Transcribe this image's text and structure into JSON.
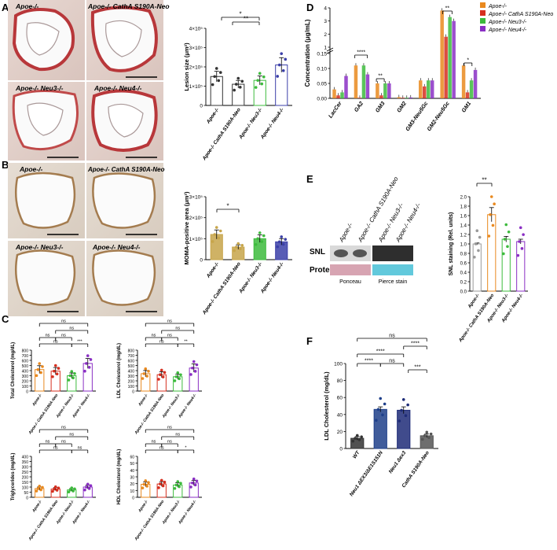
{
  "panels": {
    "A": {
      "letter": "A",
      "micro_labels": [
        "Apoe-/-",
        "Apoe-/- CathA S190A-Neo",
        "Apoe-/- Neu3-/-",
        "Apoe-/- Neu4-/-"
      ],
      "ylabel": "Lesion size (μm²)",
      "yticks": [
        "0",
        "1×10⁵",
        "2×10⁵",
        "3×10⁵",
        "4×10⁵"
      ],
      "categories": [
        "Apoe-/-",
        "Apoe-/- CathA S190A-Neo",
        "Apoe-/- Neu3-/-",
        "Apoe-/- Neu4-/-"
      ],
      "sig": [
        "*",
        "**"
      ]
    },
    "B": {
      "letter": "B",
      "micro_labels": [
        "Apoe-/-",
        "Apoe-/- CathA S190A-Neo",
        "Apoe-/- Neu3-/-",
        "Apoe-/- Neu4-/-"
      ],
      "ylabel": "MOMA-positive area (μm²)",
      "yticks": [
        "0",
        "1×10⁵",
        "2×10⁵",
        "3×10⁵"
      ],
      "categories": [
        "Apoe-/-",
        "Apoe-/- CathA S190A-Neo",
        "Apoe-/- Neu3-/-",
        "Apoe-/- Neu4-/-"
      ],
      "sig": [
        "*"
      ]
    },
    "C": {
      "letter": "C",
      "plots": [
        {
          "ylabel": "Total Cholesterol (mg/dL)",
          "yticks": [
            "0",
            "100",
            "200",
            "300",
            "400",
            "500",
            "600",
            "700",
            "800"
          ],
          "sig": [
            "ns",
            "ns",
            "ns",
            "ns",
            "ns",
            "***"
          ]
        },
        {
          "ylabel": "LDL Cholesterol (mg/dL)",
          "yticks": [
            "0",
            "100",
            "200",
            "300",
            "400",
            "500",
            "600",
            "700",
            "800"
          ],
          "sig": [
            "ns",
            "ns",
            "ns",
            "ns",
            "ns",
            "**"
          ]
        },
        {
          "ylabel": "Triglycerides (mg/dL)",
          "yticks": [
            "0",
            "50",
            "100",
            "150",
            "200",
            "250",
            "300",
            "350",
            "400"
          ],
          "sig": [
            "ns",
            "ns",
            "ns",
            "ns",
            "ns",
            "ns"
          ]
        },
        {
          "ylabel": "HDL Cholesterol (mg/dL)",
          "yticks": [
            "0",
            "10",
            "20",
            "30",
            "40",
            "50",
            "60"
          ],
          "sig": [
            "ns",
            "ns",
            "ns",
            "ns",
            "ns",
            "*"
          ]
        }
      ],
      "categories": [
        "Apoe-/-",
        "Apoe-/- CathA S190A-Neo",
        "Apoe-/- Neu3-/-",
        "Apoe-/- Neu4-/-"
      ]
    },
    "D": {
      "letter": "D",
      "ylabel": "Concentration (μg/mL)",
      "yticks": [
        "0.00",
        "0.05",
        "0.10",
        "0.15",
        "1",
        "2",
        "3",
        "4"
      ],
      "categories": [
        "LacCer",
        "GA2",
        "GM3",
        "GM2",
        "GM3-Neu5Gc",
        "GM2-Neu5Gc",
        "GM1"
      ],
      "sig": [
        "****",
        "**",
        "**",
        "*"
      ]
    },
    "E": {
      "letter": "E",
      "blot_labels": [
        "Apoe-/-",
        "Apoe-/- CathA S190A-Neo",
        "Apoe-/- Neu3-/-",
        "Apoe-/- Neu4-/-"
      ],
      "row_labels": [
        "SNL",
        "Protein"
      ],
      "stain_labels": [
        "Ponceau",
        "Pierce stain"
      ],
      "ylabel": "SNL staining (Rel. units)",
      "yticks": [
        "0.0",
        "0.2",
        "0.4",
        "0.6",
        "0.8",
        "1.0",
        "1.2",
        "1.4",
        "1.6",
        "1.8",
        "2.0"
      ],
      "categories": [
        "Apoe-/-",
        "Apoe-/- CathA S190A-Neo",
        "Apoe-/- Neu3-/-",
        "Apoe-/- Neu4-/-"
      ],
      "sig": [
        "**"
      ]
    },
    "F": {
      "letter": "F",
      "ylabel": "LDL Cholesterol (mg/dL)",
      "yticks": [
        "0",
        "20",
        "40",
        "60",
        "80",
        "100"
      ],
      "categories": [
        "WT",
        "Neu1 ΔEX3/ΔE1S151N",
        "Neu1 Δex3",
        "CathA S190A-Neo"
      ],
      "sig": [
        "ns",
        "****",
        "****",
        "****",
        "ns",
        "***"
      ]
    }
  },
  "legend": [
    "Apoe-/-",
    "Apoe-/- CathA S190A-Neo",
    "Apoe-/- Neu3-/-",
    "Apoe-/- Neu4-/-"
  ],
  "colors": {
    "c1": "#e9891f",
    "c2": "#d62f1f",
    "c3": "#3dbb3d",
    "c4": "#8a2fc4"
  },
  "chart_data": [
    {
      "type": "bar",
      "title": "A",
      "ylabel": "Lesion size (μm²)",
      "ylim": [
        0,
        400000
      ],
      "categories": [
        "Apoe-/-",
        "Apoe-/- CathA S190A-Neo",
        "Apoe-/- Neu3-/-",
        "Apoe-/- Neu4-/-"
      ],
      "values": [
        150000,
        110000,
        130000,
        210000
      ]
    },
    {
      "type": "bar",
      "title": "B",
      "ylabel": "MOMA-positive area (μm²)",
      "ylim": [
        0,
        300000
      ],
      "categories": [
        "Apoe-/-",
        "Apoe-/- CathA S190A-Neo",
        "Apoe-/- Neu3-/-",
        "Apoe-/- Neu4-/-"
      ],
      "values": [
        120000,
        60000,
        100000,
        85000
      ]
    },
    {
      "type": "bar",
      "title": "C Total",
      "ylabel": "Total Cholesterol (mg/dL)",
      "ylim": [
        0,
        800
      ],
      "categories": [
        "Apoe-/-",
        "Apoe-/- CathA S190A-Neo",
        "Apoe-/- Neu3-/-",
        "Apoe-/- Neu4-/-"
      ],
      "values": [
        420,
        390,
        300,
        540
      ]
    },
    {
      "type": "bar",
      "title": "C LDL",
      "ylabel": "LDL Cholesterol (mg/dL)",
      "ylim": [
        0,
        800
      ],
      "categories": [
        "Apoe-/-",
        "Apoe-/- CathA S190A-Neo",
        "Apoe-/- Neu3-/-",
        "Apoe-/- Neu4-/-"
      ],
      "values": [
        340,
        320,
        280,
        450
      ]
    },
    {
      "type": "bar",
      "title": "C TG",
      "ylabel": "Triglycerides (mg/dL)",
      "ylim": [
        0,
        400
      ],
      "categories": [
        "Apoe-/-",
        "Apoe-/- CathA S190A-Neo",
        "Apoe-/- Neu3-/-",
        "Apoe-/- Neu4-/-"
      ],
      "values": [
        85,
        80,
        72,
        100
      ]
    },
    {
      "type": "bar",
      "title": "C HDL",
      "ylabel": "HDL Cholesterol (mg/dL)",
      "ylim": [
        0,
        60
      ],
      "categories": [
        "Apoe-/-",
        "Apoe-/- CathA S190A-Neo",
        "Apoe-/- Neu3-/-",
        "Apoe-/- Neu4-/-"
      ],
      "values": [
        19,
        19.5,
        18,
        21
      ]
    },
    {
      "type": "bar",
      "title": "D",
      "ylabel": "Concentration (μg/mL)",
      "categories": [
        "LacCer",
        "GA2",
        "GM3",
        "GM2",
        "GM3-Neu5Gc",
        "GM2-Neu5Gc",
        "GM1"
      ],
      "series": [
        {
          "name": "Apoe-/-",
          "values": [
            0.03,
            0.11,
            0.05,
            0.004,
            0.06,
            3.8,
            0.11
          ]
        },
        {
          "name": "Apoe-/- CathA S190A-Neo",
          "values": [
            0.01,
            0.002,
            0.01,
            0.002,
            0.04,
            1.8,
            0.02
          ]
        },
        {
          "name": "Apoe-/- Neu3-/-",
          "values": [
            0.02,
            0.11,
            0.05,
            0.002,
            0.06,
            3.3,
            0.06
          ]
        },
        {
          "name": "Apoe-/- Neu4-/-",
          "values": [
            0.075,
            0.08,
            0.05,
            0.003,
            0.06,
            3.0,
            0.095
          ]
        }
      ]
    },
    {
      "type": "bar",
      "title": "E",
      "ylabel": "SNL staining (Rel. units)",
      "ylim": [
        0,
        2.0
      ],
      "categories": [
        "Apoe-/-",
        "Apoe-/- CathA S190A-Neo",
        "Apoe-/- Neu3-/-",
        "Apoe-/- Neu4-/-"
      ],
      "values": [
        1.0,
        1.62,
        1.1,
        1.05
      ]
    },
    {
      "type": "bar",
      "title": "F",
      "ylabel": "LDL Cholesterol (mg/dL)",
      "ylim": [
        0,
        100
      ],
      "categories": [
        "WT",
        "Neu1 ΔEX3/ΔE1S151N",
        "Neu1 Δex3",
        "CathA S190A-Neo"
      ],
      "values": [
        12,
        46,
        45,
        15
      ]
    }
  ]
}
